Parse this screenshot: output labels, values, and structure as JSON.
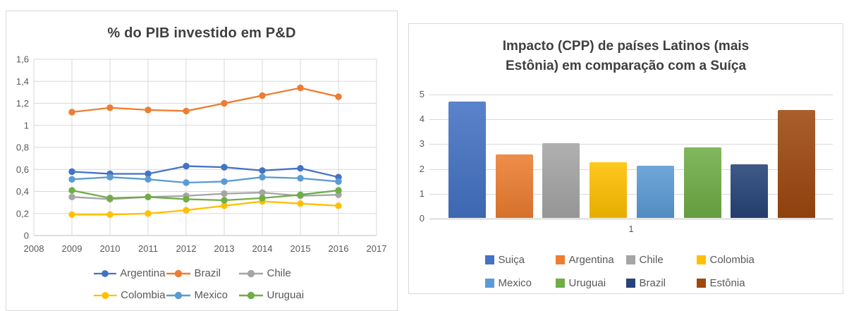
{
  "chart_data": [
    {
      "type": "line",
      "title": "% do PIB investido em P&D",
      "x": [
        2009,
        2010,
        2011,
        2012,
        2013,
        2014,
        2015,
        2016
      ],
      "series": [
        {
          "name": "Argentina",
          "color": "#4472C4",
          "values": [
            0.58,
            0.56,
            0.56,
            0.63,
            0.62,
            0.59,
            0.61,
            0.53
          ]
        },
        {
          "name": "Brazil",
          "color": "#ED7D31",
          "values": [
            1.12,
            1.16,
            1.14,
            1.13,
            1.2,
            1.27,
            1.34,
            1.26
          ]
        },
        {
          "name": "Chile",
          "color": "#A5A5A5",
          "values": [
            0.35,
            0.33,
            0.35,
            0.36,
            0.38,
            0.39,
            0.36,
            0.37
          ]
        },
        {
          "name": "Colombia",
          "color": "#FFC000",
          "values": [
            0.19,
            0.19,
            0.2,
            0.23,
            0.27,
            0.31,
            0.29,
            0.27
          ]
        },
        {
          "name": "Mexico",
          "color": "#5B9BD5",
          "values": [
            0.51,
            0.53,
            0.51,
            0.48,
            0.49,
            0.53,
            0.52,
            0.49
          ]
        },
        {
          "name": "Uruguai",
          "color": "#70AD47",
          "values": [
            0.41,
            0.34,
            0.35,
            0.33,
            0.32,
            0.34,
            0.37,
            0.41
          ]
        }
      ],
      "xlim": [
        2008,
        2017
      ],
      "ylim": [
        0,
        1.6
      ],
      "x_ticks": [
        "2008",
        "2009",
        "2010",
        "2011",
        "2012",
        "2013",
        "2014",
        "2015",
        "2016",
        "2017"
      ],
      "y_ticks": [
        "0",
        "0,2",
        "0,4",
        "0,6",
        "0,8",
        "1",
        "1,2",
        "1,4",
        "1,6"
      ],
      "grid": true,
      "legend_position": "bottom",
      "legend_rows": [
        [
          "Argentina",
          "Brazil",
          "Chile"
        ],
        [
          "Colombia",
          "Mexico",
          "Uruguai"
        ]
      ]
    },
    {
      "type": "bar",
      "title": "Impacto (CPP) de países Latinos (mais Estônia) em comparação com a Suíça",
      "title_lines": [
        "Impacto (CPP) de países Latinos (mais",
        "Estônia) em comparação com a Suíça"
      ],
      "categories": [
        "1"
      ],
      "series": [
        {
          "name": "Suiça",
          "color": "#4472C4",
          "value": 4.7
        },
        {
          "name": "Argentina",
          "color": "#ED7D31",
          "value": 2.57
        },
        {
          "name": "Chile",
          "color": "#A5A5A5",
          "value": 3.0
        },
        {
          "name": "Colombia",
          "color": "#FFC000",
          "value": 2.25
        },
        {
          "name": "Mexico",
          "color": "#5B9BD5",
          "value": 2.1
        },
        {
          "name": "Uruguai",
          "color": "#70AD47",
          "value": 2.85
        },
        {
          "name": "Brazil",
          "color": "#264478",
          "value": 2.15
        },
        {
          "name": "Estônia",
          "color": "#9E480E",
          "value": 4.35
        }
      ],
      "ylim": [
        0,
        5
      ],
      "y_ticks": [
        "0",
        "1",
        "2",
        "3",
        "4",
        "5"
      ],
      "grid": true,
      "legend_position": "bottom",
      "legend_rows": [
        [
          "Suiça",
          "Argentina",
          "Chile",
          "Colombia"
        ],
        [
          "Mexico",
          "Uruguai",
          "Brazil",
          "Estônia"
        ]
      ]
    }
  ],
  "colors": {
    "grid": "#D9D9D9",
    "axis": "#BFBFBF",
    "tick_text": "#595959",
    "title_text": "#3F3F3F",
    "card_border": "#D9D9D9"
  }
}
